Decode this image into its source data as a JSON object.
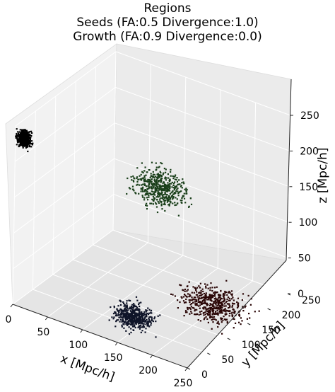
{
  "chart_data": {
    "type": "scatter",
    "projection": "3d",
    "title_lines": [
      "Regions",
      "Seeds (FA:0.5 Divergence:1.0)",
      "Growth (FA:0.9 Divergence:0.0)"
    ],
    "xlabel": "x [Mpc/h]",
    "ylabel": "y [Mpc/h]",
    "zlabel": "z [Mpc/h]",
    "xlim": [
      0,
      250
    ],
    "ylim": [
      0,
      250
    ],
    "zlim": [
      0,
      250
    ],
    "x_ticks": [
      "0",
      "50",
      "100",
      "150",
      "200",
      "250"
    ],
    "y_ticks": [
      "0",
      "50",
      "100",
      "150",
      "200",
      "250"
    ],
    "z_ticks": [
      "0",
      "50",
      "100",
      "150",
      "200",
      "250"
    ],
    "grid": true,
    "regions": [
      {
        "color": "#000000",
        "center": [
          0,
          20,
          225
        ],
        "spread": [
          8,
          8,
          8
        ]
      },
      {
        "color": "#1a3f1a",
        "center": [
          100,
          190,
          120
        ],
        "spread": [
          30,
          25,
          20
        ]
      },
      {
        "color": "#0f1428",
        "center": [
          150,
          40,
          20
        ],
        "spread": [
          22,
          18,
          12
        ]
      },
      {
        "color": "#2a0606",
        "center": [
          200,
          150,
          10
        ],
        "spread": [
          35,
          30,
          15
        ]
      }
    ]
  }
}
